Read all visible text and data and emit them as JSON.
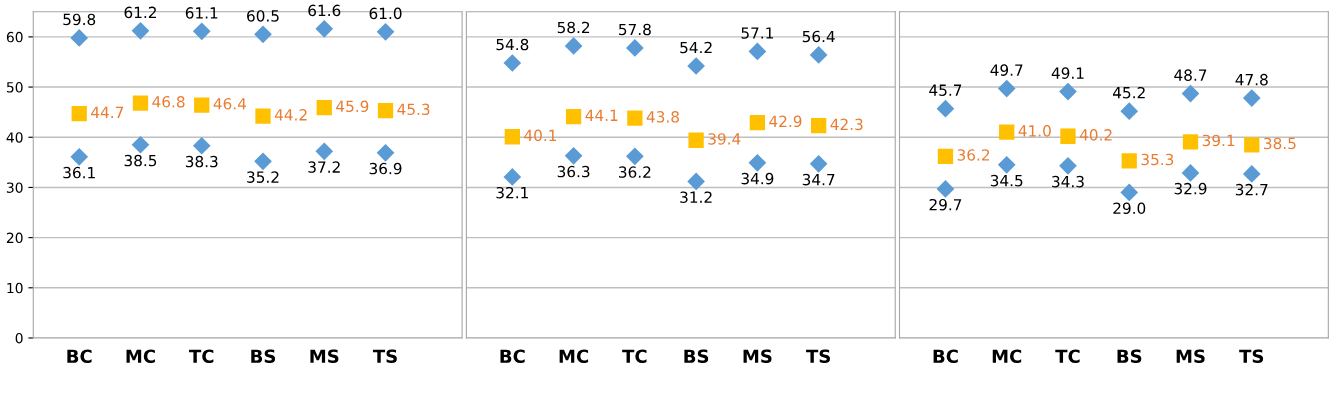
{
  "chart_data": [
    {
      "type": "scatter",
      "categories": [
        "BC",
        "MC",
        "TC",
        "BS",
        "MS",
        "TS"
      ],
      "grid": "y",
      "ylim": [
        0,
        65
      ],
      "yticks": [
        0,
        10,
        20,
        30,
        40,
        50,
        60
      ],
      "series": [
        {
          "color": "#5b9bd5",
          "marker": "diamond",
          "values": [
            59.8,
            61.2,
            61.1,
            60.5,
            61.6,
            61.0
          ],
          "value_labels": [
            "59.8",
            "61.2",
            "61.1",
            "60.5",
            "61.6",
            "61.0"
          ]
        },
        {
          "color": "#ffc000",
          "marker": "square",
          "values": [
            44.7,
            46.8,
            46.4,
            44.2,
            45.9,
            45.3
          ],
          "value_labels": [
            "44.7",
            "46.8",
            "46.4",
            "44.2",
            "45.9",
            "45.3"
          ]
        },
        {
          "color": "#5b9bd5",
          "marker": "diamond",
          "values": [
            36.1,
            38.5,
            38.3,
            35.2,
            37.2,
            36.9
          ],
          "value_labels": [
            "36.1",
            "38.5",
            "38.3",
            "35.2",
            "37.2",
            "36.9"
          ]
        }
      ]
    },
    {
      "type": "scatter",
      "categories": [
        "BC",
        "MC",
        "TC",
        "BS",
        "MS",
        "TS"
      ],
      "grid": "y",
      "ylim": [
        0,
        65
      ],
      "yticks": [
        0,
        10,
        20,
        30,
        40,
        50,
        60
      ],
      "tick_labels": "x",
      "series": [
        {
          "color": "#5b9bd5",
          "marker": "diamond",
          "values": [
            54.8,
            58.2,
            57.8,
            54.2,
            57.1,
            56.4
          ],
          "value_labels": [
            "54.8",
            "58.2",
            "57.8",
            "54.2",
            "57.1",
            "56.4"
          ]
        },
        {
          "color": "#ffc000",
          "marker": "square",
          "values": [
            40.1,
            44.1,
            43.8,
            39.4,
            42.9,
            42.3
          ],
          "value_labels": [
            "40.1",
            "44.1",
            "43.8",
            "39.4",
            "42.9",
            "42.3"
          ]
        },
        {
          "color": "#5b9bd5",
          "marker": "diamond",
          "values": [
            32.1,
            36.3,
            36.2,
            31.2,
            34.9,
            34.7
          ],
          "value_labels": [
            "32.1",
            "36.3",
            "36.2",
            "31.2",
            "34.9",
            "34.7"
          ]
        }
      ]
    },
    {
      "type": "scatter",
      "categories": [
        "BC",
        "MC",
        "TC",
        "BS",
        "MS",
        "TS"
      ],
      "grid": "y",
      "ylim": [
        0,
        65
      ],
      "yticks": [
        0,
        10,
        20,
        30,
        40,
        50,
        60
      ],
      "tick_labels": "x",
      "series": [
        {
          "color": "#5b9bd5",
          "marker": "diamond",
          "values": [
            45.7,
            49.7,
            49.1,
            45.2,
            48.7,
            47.8
          ],
          "value_labels": [
            "45.7",
            "49.7",
            "49.1",
            "45.2",
            "48.7",
            "47.8"
          ]
        },
        {
          "color": "#ffc000",
          "marker": "square",
          "values": [
            36.2,
            41.0,
            40.2,
            35.3,
            39.1,
            38.5
          ],
          "value_labels": [
            "36.2",
            "41.0",
            "40.2",
            "35.3",
            "39.1",
            "38.5"
          ]
        },
        {
          "color": "#5b9bd5",
          "marker": "diamond",
          "values": [
            29.7,
            34.5,
            34.3,
            29.0,
            32.9,
            32.7
          ],
          "value_labels": [
            "29.7",
            "34.5",
            "34.3",
            "29.0",
            "32.9",
            "32.7"
          ]
        }
      ]
    }
  ]
}
